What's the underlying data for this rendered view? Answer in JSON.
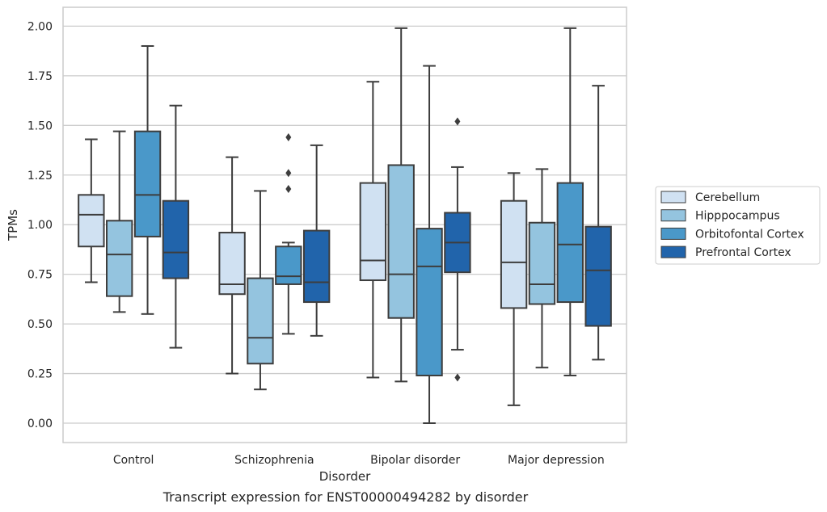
{
  "chart_data": {
    "type": "box",
    "xlabel": "Disorder",
    "ylabel": "TPMs",
    "caption": "Transcript expression for ENST00000494282 by disorder",
    "ylim": [
      -0.1,
      2.1
    ],
    "yticks": [
      0.0,
      0.25,
      0.5,
      0.75,
      1.0,
      1.25,
      1.5,
      1.75,
      2.0
    ],
    "ytick_labels": [
      "0.00",
      "0.25",
      "0.50",
      "0.75",
      "1.00",
      "1.25",
      "1.50",
      "1.75",
      "2.00"
    ],
    "grid": true,
    "legend_position": "right",
    "categories": [
      "Control",
      "Schizophrenia",
      "Bipolar disorder",
      "Major depression"
    ],
    "series": [
      {
        "name": "Cerebellum",
        "color": "#d0e1f2",
        "boxes": [
          {
            "whislo": 0.71,
            "q1": 0.89,
            "med": 1.05,
            "q3": 1.15,
            "whishi": 1.43,
            "fliers": []
          },
          {
            "whislo": 0.25,
            "q1": 0.65,
            "med": 0.7,
            "q3": 0.96,
            "whishi": 1.34,
            "fliers": []
          },
          {
            "whislo": 0.23,
            "q1": 0.72,
            "med": 0.82,
            "q3": 1.21,
            "whishi": 1.72,
            "fliers": []
          },
          {
            "whislo": 0.09,
            "q1": 0.58,
            "med": 0.81,
            "q3": 1.12,
            "whishi": 1.26,
            "fliers": []
          }
        ]
      },
      {
        "name": "Hipppocampus",
        "color": "#94c4df",
        "boxes": [
          {
            "whislo": 0.56,
            "q1": 0.64,
            "med": 0.85,
            "q3": 1.02,
            "whishi": 1.47,
            "fliers": []
          },
          {
            "whislo": 0.17,
            "q1": 0.3,
            "med": 0.43,
            "q3": 0.73,
            "whishi": 1.17,
            "fliers": []
          },
          {
            "whislo": 0.21,
            "q1": 0.53,
            "med": 0.75,
            "q3": 1.3,
            "whishi": 1.99,
            "fliers": []
          },
          {
            "whislo": 0.28,
            "q1": 0.6,
            "med": 0.7,
            "q3": 1.01,
            "whishi": 1.28,
            "fliers": []
          }
        ]
      },
      {
        "name": "Orbitofontal Cortex",
        "color": "#4a98c9",
        "boxes": [
          {
            "whislo": 0.55,
            "q1": 0.94,
            "med": 1.15,
            "q3": 1.47,
            "whishi": 1.9,
            "fliers": []
          },
          {
            "whislo": 0.45,
            "q1": 0.7,
            "med": 0.74,
            "q3": 0.89,
            "whishi": 0.91,
            "fliers": [
              1.18,
              1.26,
              1.44
            ]
          },
          {
            "whislo": 0.0,
            "q1": 0.24,
            "med": 0.79,
            "q3": 0.98,
            "whishi": 1.8,
            "fliers": []
          },
          {
            "whislo": 0.24,
            "q1": 0.61,
            "med": 0.9,
            "q3": 1.21,
            "whishi": 1.99,
            "fliers": []
          }
        ]
      },
      {
        "name": "Prefrontal Cortex",
        "color": "#2164ab",
        "boxes": [
          {
            "whislo": 0.38,
            "q1": 0.73,
            "med": 0.86,
            "q3": 1.12,
            "whishi": 1.6,
            "fliers": []
          },
          {
            "whislo": 0.44,
            "q1": 0.61,
            "med": 0.71,
            "q3": 0.97,
            "whishi": 1.4,
            "fliers": []
          },
          {
            "whislo": 0.37,
            "q1": 0.76,
            "med": 0.91,
            "q3": 1.06,
            "whishi": 1.29,
            "fliers": [
              0.23,
              1.52
            ]
          },
          {
            "whislo": 0.32,
            "q1": 0.49,
            "med": 0.77,
            "q3": 0.99,
            "whishi": 1.7,
            "fliers": []
          }
        ]
      }
    ]
  }
}
